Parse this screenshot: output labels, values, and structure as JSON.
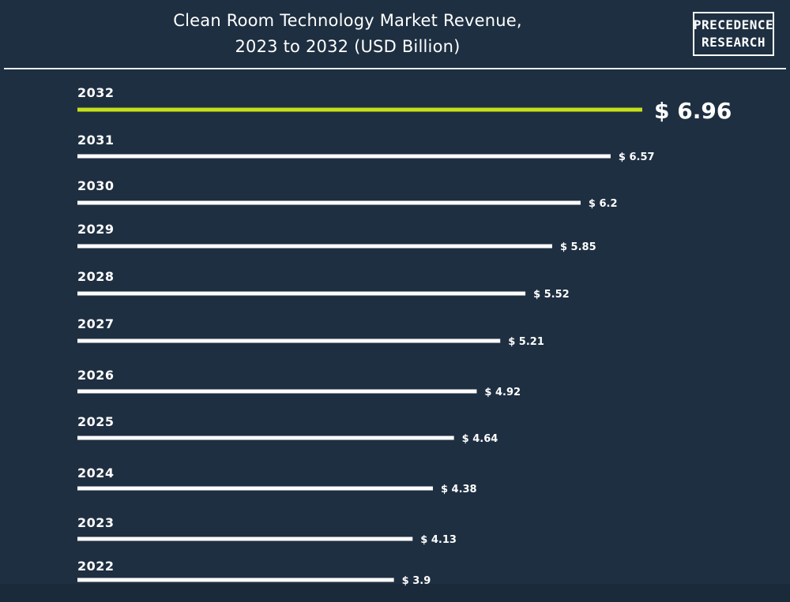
{
  "header": {
    "title_line1": "Clean Room Technology Market Revenue,",
    "title_line2": "2023 to 2032 (USD Billion)"
  },
  "logo": {
    "line1": "PRECEDENCE",
    "line2": "RESEARCH"
  },
  "colors": {
    "background": "#1e2f41",
    "bar": "#ffffff",
    "highlight_bar": "#c5e019",
    "text": "#ffffff"
  },
  "chart_data": {
    "type": "bar",
    "orientation": "horizontal",
    "title": "Clean Room Technology Market Revenue, 2023 to 2032 (USD Billion)",
    "categories": [
      "2032",
      "2031",
      "2030",
      "2029",
      "2028",
      "2027",
      "2026",
      "2025",
      "2024",
      "2023",
      "2022"
    ],
    "values": [
      6.96,
      6.57,
      6.2,
      5.85,
      5.52,
      5.21,
      4.92,
      4.64,
      4.38,
      4.13,
      3.9
    ],
    "value_labels": [
      "$ 6.96",
      "$ 6.57",
      "$ 6.2",
      "$ 5.85",
      "$ 5.52",
      "$ 5.21",
      "$ 4.92",
      "$ 4.64",
      "$ 4.38",
      "$ 4.13",
      "$ 3.9"
    ],
    "highlight_category": "2032",
    "grid": false,
    "legend": "none"
  }
}
